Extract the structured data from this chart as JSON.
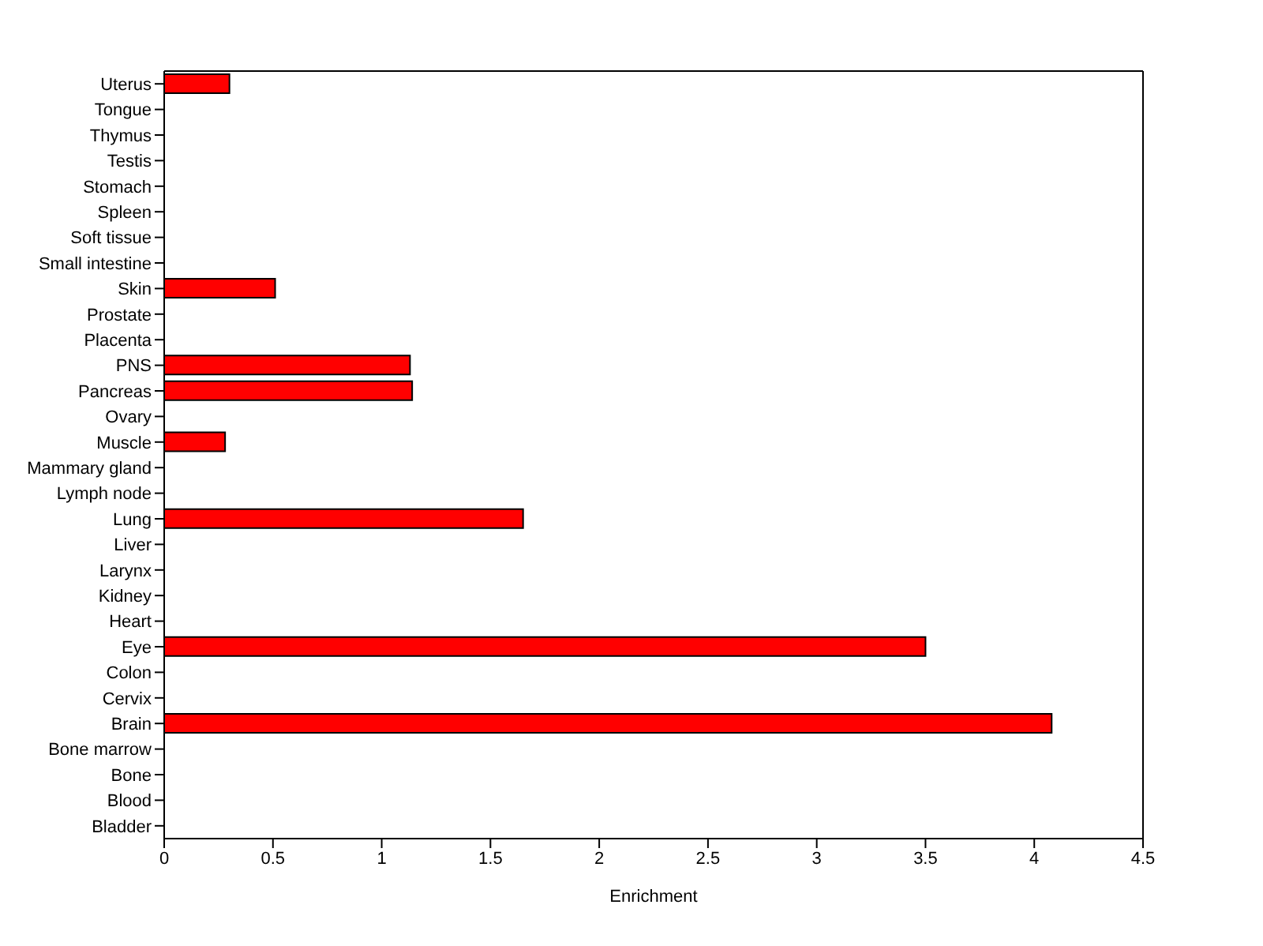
{
  "chart_data": {
    "type": "bar",
    "orientation": "horizontal",
    "xlabel": "Enrichment",
    "categories": [
      "Uterus",
      "Tongue",
      "Thymus",
      "Testis",
      "Stomach",
      "Spleen",
      "Soft tissue",
      "Small intestine",
      "Skin",
      "Prostate",
      "Placenta",
      "PNS",
      "Pancreas",
      "Ovary",
      "Muscle",
      "Mammary gland",
      "Lymph node",
      "Lung",
      "Liver",
      "Larynx",
      "Kidney",
      "Heart",
      "Eye",
      "Colon",
      "Cervix",
      "Brain",
      "Bone marrow",
      "Bone",
      "Blood",
      "Bladder"
    ],
    "values": [
      0.3,
      0,
      0,
      0,
      0,
      0,
      0,
      0,
      0.51,
      0,
      0,
      1.13,
      1.14,
      0,
      0.28,
      0,
      0,
      1.65,
      0,
      0,
      0,
      0,
      3.5,
      0,
      0,
      4.08,
      0,
      0,
      0,
      0
    ],
    "color": "#ff0000",
    "xlim": [
      0,
      4.5
    ],
    "xticks": [
      0,
      0.5,
      1,
      1.5,
      2,
      2.5,
      3,
      3.5,
      4,
      4.5
    ],
    "grid": false
  }
}
